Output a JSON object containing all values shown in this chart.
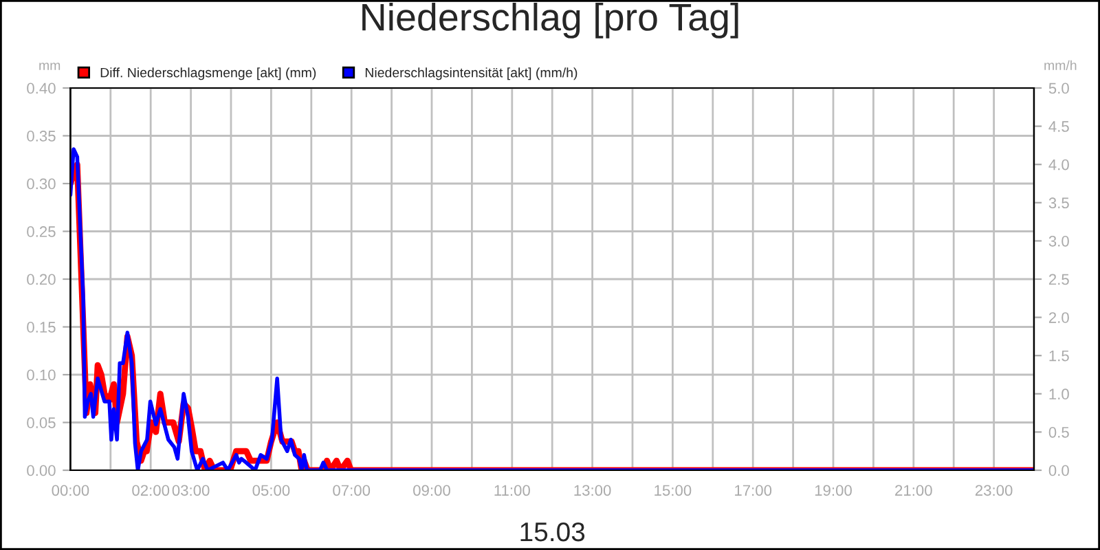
{
  "chart_data": {
    "type": "line",
    "title": "Niederschlag [pro Tag]",
    "xlabel": "15.03",
    "ylabel": "mm",
    "y2label": "mm/h",
    "xlim": [
      0,
      24
    ],
    "xticks": [
      {
        "value": 0,
        "label": "00:00"
      },
      {
        "value": 1,
        "label": null
      },
      {
        "value": 2,
        "label": "02:00"
      },
      {
        "value": 3,
        "label": "03:00"
      },
      {
        "value": 4,
        "label": null
      },
      {
        "value": 5,
        "label": "05:00"
      },
      {
        "value": 6,
        "label": null
      },
      {
        "value": 7,
        "label": "07:00"
      },
      {
        "value": 8,
        "label": null
      },
      {
        "value": 9,
        "label": "09:00"
      },
      {
        "value": 10,
        "label": null
      },
      {
        "value": 11,
        "label": "11:00"
      },
      {
        "value": 12,
        "label": null
      },
      {
        "value": 13,
        "label": "13:00"
      },
      {
        "value": 14,
        "label": null
      },
      {
        "value": 15,
        "label": "15:00"
      },
      {
        "value": 16,
        "label": null
      },
      {
        "value": 17,
        "label": "17:00"
      },
      {
        "value": 18,
        "label": null
      },
      {
        "value": 19,
        "label": "19:00"
      },
      {
        "value": 20,
        "label": null
      },
      {
        "value": 21,
        "label": "21:00"
      },
      {
        "value": 22,
        "label": null
      },
      {
        "value": 23,
        "label": "23:00"
      },
      {
        "value": 24,
        "label": null
      }
    ],
    "ylim": [
      0,
      0.4
    ],
    "yticks": [
      {
        "value": 0,
        "label": "0.00"
      },
      {
        "value": 0.05,
        "label": "0.05"
      },
      {
        "value": 0.1,
        "label": "0.10"
      },
      {
        "value": 0.15,
        "label": "0.15"
      },
      {
        "value": 0.2,
        "label": "0.20"
      },
      {
        "value": 0.25,
        "label": "0.25"
      },
      {
        "value": 0.3,
        "label": "0.30"
      },
      {
        "value": 0.35,
        "label": "0.35"
      },
      {
        "value": 0.4,
        "label": "0.40"
      }
    ],
    "y2lim": [
      0,
      5
    ],
    "y2ticks": [
      {
        "value": 0,
        "label": "0.0"
      },
      {
        "value": 0.5,
        "label": "0.5"
      },
      {
        "value": 1,
        "label": "1.0"
      },
      {
        "value": 1.5,
        "label": "1.5"
      },
      {
        "value": 2,
        "label": "2.0"
      },
      {
        "value": 2.5,
        "label": "2.5"
      },
      {
        "value": 3,
        "label": "3.0"
      },
      {
        "value": 3.5,
        "label": "3.5"
      },
      {
        "value": 4,
        "label": "4.0"
      },
      {
        "value": 4.5,
        "label": "4.5"
      },
      {
        "value": 5,
        "label": "5.0"
      }
    ],
    "grid": true,
    "legend": "top left",
    "marker": "none",
    "line_style": "solid",
    "series": [
      {
        "name": "Diff. Niederschlagsmenge [akt] (mm)",
        "color": "#ff0000",
        "x": [
          0,
          0.17,
          0.4,
          0.49,
          0.62,
          0.68,
          0.77,
          0.85,
          0.97,
          1.08,
          1.16,
          1.31,
          1.42,
          1.53,
          1.65,
          1.76,
          1.84,
          1.9,
          2.01,
          2.13,
          2.24,
          2.35,
          2.56,
          2.7,
          2.82,
          2.93,
          3.02,
          3.12,
          3.24,
          3.35,
          3.47,
          3.58,
          3.98,
          4.13,
          4.26,
          4.38,
          4.49,
          4.6,
          4.89,
          5.0,
          5.15,
          5.28,
          5.4,
          5.51,
          5.59,
          5.68,
          5.76,
          5.82,
          5.91,
          6.3,
          6.39,
          6.48,
          6.63,
          6.73,
          6.9,
          6.99,
          24
        ],
        "values": [
          0.3,
          0.32,
          0.06,
          0.09,
          0.06,
          0.11,
          0.1,
          0.08,
          0.073,
          0.09,
          0.05,
          0.08,
          0.14,
          0.12,
          0.03,
          0.01,
          0.02,
          0.02,
          0.05,
          0.04,
          0.08,
          0.05,
          0.05,
          0.03,
          0.07,
          0.065,
          0.045,
          0.02,
          0.02,
          0,
          0.01,
          0,
          0,
          0.02,
          0.02,
          0.02,
          0.01,
          0.01,
          0.01,
          0.03,
          0.05,
          0.03,
          0.03,
          0.03,
          0.02,
          0.02,
          0,
          0.01,
          0,
          0,
          0.01,
          0,
          0.01,
          0,
          0.01,
          0,
          0
        ]
      },
      {
        "name": "Niederschlagsintensität [akt] (mm/h)",
        "color": "#0000ff",
        "axis": "y2",
        "x": [
          0,
          0.08,
          0.17,
          0.32,
          0.36,
          0.43,
          0.51,
          0.57,
          0.68,
          0.85,
          0.97,
          1.02,
          1.08,
          1.16,
          1.23,
          1.31,
          1.42,
          1.53,
          1.61,
          1.68,
          1.76,
          1.91,
          1.99,
          2.13,
          2.24,
          2.44,
          2.59,
          2.67,
          2.82,
          2.93,
          3.02,
          3.16,
          3.3,
          3.42,
          3.8,
          3.92,
          4.13,
          4.2,
          4.26,
          4.38,
          4.6,
          4.74,
          4.89,
          5.02,
          5.15,
          5.25,
          5.4,
          5.49,
          5.59,
          5.7,
          5.76,
          5.82,
          5.89,
          6.22,
          6.3,
          6.39,
          24
        ],
        "values": [
          3.6,
          4.2,
          4.1,
          2.25,
          0.7,
          0.9,
          1.0,
          0.7,
          1.2,
          0.9,
          0.9,
          0.4,
          0.8,
          0.4,
          1.4,
          1.4,
          1.8,
          1.4,
          0.35,
          0,
          0.25,
          0.4,
          0.9,
          0.6,
          0.8,
          0.4,
          0.3,
          0.15,
          1.0,
          0.7,
          0.25,
          0,
          0.15,
          0,
          0.1,
          0,
          0.2,
          0.1,
          0.15,
          0.1,
          0,
          0.2,
          0.15,
          0.4,
          1.2,
          0.4,
          0.25,
          0.4,
          0.2,
          0.15,
          0,
          0.2,
          0,
          0,
          0.1,
          0,
          0
        ]
      }
    ]
  }
}
